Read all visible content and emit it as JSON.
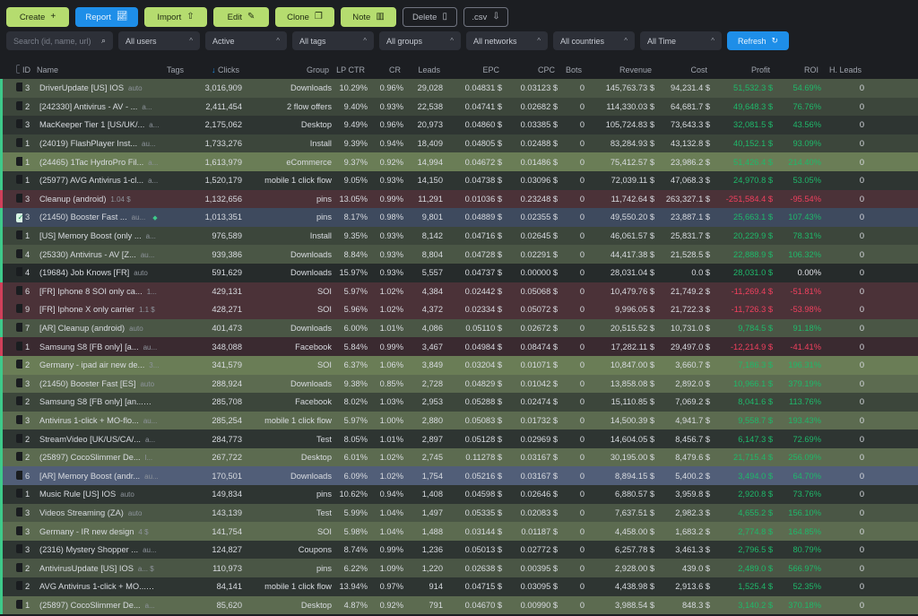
{
  "toolbar": {
    "create": "Create",
    "report": "Report",
    "import": "Import",
    "edit": "Edit",
    "clone": "Clone",
    "note": "Note",
    "delete": "Delete",
    "csv": ".csv"
  },
  "filters": {
    "search_placeholder": "Search (id, name, url)",
    "users": "All users",
    "status": "Active",
    "tags": "All tags",
    "groups": "All groups",
    "networks": "All networks",
    "countries": "All countries",
    "time": "All Time",
    "refresh": "Refresh"
  },
  "columns": [
    "ID",
    "Name",
    "Tags",
    "Clicks",
    "Group",
    "LP CTR",
    "CR",
    "Leads",
    "EPC",
    "CPC",
    "Bots",
    "Revenue",
    "Cost",
    "Profit",
    "ROI",
    "H. Leads"
  ],
  "rows": [
    {
      "id": "3",
      "name": "DriverUpdate [US] IOS",
      "tag": "auto",
      "clicks": "3,016,909",
      "group": "Downloads",
      "lpctr": "10.29%",
      "cr": "0.96%",
      "leads": "29,028",
      "epc": "0.04831 $",
      "cpc": "0.03123 $",
      "bots": "0",
      "revenue": "145,763.73 $",
      "cost": "94,231.4 $",
      "profit": "51,532.3 $",
      "roi": "54.69%",
      "hleads": "0",
      "sign": "pos",
      "bg": "bg-a",
      "checked": false
    },
    {
      "id": "2",
      "name": "[242330] Antivirus - AV - ...",
      "tag": "a...",
      "clicks": "2,411,454",
      "group": "2 flow offers",
      "lpctr": "9.40%",
      "cr": "0.93%",
      "leads": "22,538",
      "epc": "0.04741 $",
      "cpc": "0.02682 $",
      "bots": "0",
      "revenue": "114,330.03 $",
      "cost": "64,681.7 $",
      "profit": "49,648.3 $",
      "roi": "76.76%",
      "hleads": "0",
      "sign": "pos",
      "bg": "bg-b",
      "checked": false
    },
    {
      "id": "3",
      "name": "MacKeeper Tier 1 [US/UK/...",
      "tag": "a...",
      "clicks": "2,175,062",
      "group": "Desktop",
      "lpctr": "9.49%",
      "cr": "0.96%",
      "leads": "20,973",
      "epc": "0.04860 $",
      "cpc": "0.03385 $",
      "bots": "0",
      "revenue": "105,724.83 $",
      "cost": "73,643.3 $",
      "profit": "32,081.5 $",
      "roi": "43.56%",
      "hleads": "0",
      "sign": "pos",
      "bg": "bg-c",
      "checked": false
    },
    {
      "id": "1",
      "name": "(24019) FlashPlayer Inst...",
      "tag": "au...",
      "clicks": "1,733,276",
      "group": "Install",
      "lpctr": "9.39%",
      "cr": "0.94%",
      "leads": "18,409",
      "epc": "0.04805 $",
      "cpc": "0.02488 $",
      "bots": "0",
      "revenue": "83,284.93 $",
      "cost": "43,132.8 $",
      "profit": "40,152.1 $",
      "roi": "93.09%",
      "hleads": "0",
      "sign": "pos",
      "bg": "bg-b",
      "checked": false
    },
    {
      "id": "1",
      "name": "(24465) 1Tac HydroPro Fil...",
      "tag": "a...",
      "clicks": "1,613,979",
      "group": "eCommerce",
      "lpctr": "9.37%",
      "cr": "0.92%",
      "leads": "14,994",
      "epc": "0.04672 $",
      "cpc": "0.01486 $",
      "bots": "0",
      "revenue": "75,412.57 $",
      "cost": "23,986.2 $",
      "profit": "51,426.4 $",
      "roi": "214.40%",
      "hleads": "0",
      "sign": "pos",
      "bg": "bg-light",
      "checked": false
    },
    {
      "id": "1",
      "name": "(25977) AVG Antivirus 1-cl...",
      "tag": "a...",
      "clicks": "1,520,179",
      "group": "mobile 1 click flow",
      "lpctr": "9.05%",
      "cr": "0.93%",
      "leads": "14,150",
      "epc": "0.04738 $",
      "cpc": "0.03096 $",
      "bots": "0",
      "revenue": "72,039.11 $",
      "cost": "47,068.3 $",
      "profit": "24,970.8 $",
      "roi": "53.05%",
      "hleads": "0",
      "sign": "pos",
      "bg": "bg-c",
      "checked": false
    },
    {
      "id": "3",
      "name": "Cleanup (android)",
      "tag": "1.04 $",
      "clicks": "1,132,656",
      "group": "pins",
      "lpctr": "13.05%",
      "cr": "0.99%",
      "leads": "11,291",
      "epc": "0.01036 $",
      "cpc": "0.23248 $",
      "bots": "0",
      "revenue": "11,742.64 $",
      "cost": "263,327.1 $",
      "profit": "-251,584.4 $",
      "roi": "-95.54%",
      "hleads": "0",
      "sign": "neg",
      "bg": "bg-red",
      "checked": false
    },
    {
      "id": "3",
      "name": "(21450) Booster Fast ...",
      "tag": "au...",
      "clicks": "1,013,351",
      "group": "pins",
      "lpctr": "8.17%",
      "cr": "0.98%",
      "leads": "9,801",
      "epc": "0.04889 $",
      "cpc": "0.02355 $",
      "bots": "0",
      "revenue": "49,550.20 $",
      "cost": "23,887.1 $",
      "profit": "25,663.1 $",
      "roi": "107.43%",
      "hleads": "0",
      "sign": "pos",
      "bg": "bg-blue",
      "checked": true
    },
    {
      "id": "1",
      "name": "[US] Memory Boost (only ...",
      "tag": "a...",
      "clicks": "976,589",
      "group": "Install",
      "lpctr": "9.35%",
      "cr": "0.93%",
      "leads": "8,142",
      "epc": "0.04716 $",
      "cpc": "0.02645 $",
      "bots": "0",
      "revenue": "46,061.57 $",
      "cost": "25,831.7 $",
      "profit": "20,229.9 $",
      "roi": "78.31%",
      "hleads": "0",
      "sign": "pos",
      "bg": "bg-b",
      "checked": false
    },
    {
      "id": "4",
      "name": "(25330) Antivirus - AV [Z...",
      "tag": "au...",
      "clicks": "939,386",
      "group": "Downloads",
      "lpctr": "8.84%",
      "cr": "0.93%",
      "leads": "8,804",
      "epc": "0.04728 $",
      "cpc": "0.02291 $",
      "bots": "0",
      "revenue": "44,417.38 $",
      "cost": "21,528.5 $",
      "profit": "22,888.9 $",
      "roi": "106.32%",
      "hleads": "0",
      "sign": "pos",
      "bg": "bg-a",
      "checked": false
    },
    {
      "id": "4",
      "name": "(19684) Job Knows [FR]",
      "tag": "auto",
      "clicks": "591,629",
      "group": "Downloads",
      "lpctr": "15.97%",
      "cr": "0.93%",
      "leads": "5,557",
      "epc": "0.04737 $",
      "cpc": "0.00000 $",
      "bots": "0",
      "revenue": "28,031.04 $",
      "cost": "0.0 $",
      "profit": "28,031.0 $",
      "roi": "0.00%",
      "hleads": "0",
      "sign": "pos",
      "bg": "bg-dark",
      "checked": false,
      "roi_zero": true
    },
    {
      "id": "6",
      "name": "[FR] Iphone 8 SOI only ca...",
      "tag": "1...",
      "clicks": "429,131",
      "group": "SOI",
      "lpctr": "5.97%",
      "cr": "1.02%",
      "leads": "4,384",
      "epc": "0.02442 $",
      "cpc": "0.05068 $",
      "bots": "0",
      "revenue": "10,479.76 $",
      "cost": "21,749.2 $",
      "profit": "-11,269.4 $",
      "roi": "-51.81%",
      "hleads": "0",
      "sign": "neg",
      "bg": "bg-red",
      "checked": false
    },
    {
      "id": "9",
      "name": "[FR] Iphone X only carrier",
      "tag": "1.1 $",
      "clicks": "428,271",
      "group": "SOI",
      "lpctr": "5.96%",
      "cr": "1.02%",
      "leads": "4,372",
      "epc": "0.02334 $",
      "cpc": "0.05072 $",
      "bots": "0",
      "revenue": "9,996.05 $",
      "cost": "21,722.3 $",
      "profit": "-11,726.3 $",
      "roi": "-53.98%",
      "hleads": "0",
      "sign": "neg",
      "bg": "bg-red",
      "checked": false
    },
    {
      "id": "7",
      "name": "[AR] Cleanup (android)",
      "tag": "auto",
      "clicks": "401,473",
      "group": "Downloads",
      "lpctr": "6.00%",
      "cr": "1.01%",
      "leads": "4,086",
      "epc": "0.05110 $",
      "cpc": "0.02672 $",
      "bots": "0",
      "revenue": "20,515.52 $",
      "cost": "10,731.0 $",
      "profit": "9,784.5 $",
      "roi": "91.18%",
      "hleads": "0",
      "sign": "pos",
      "bg": "bg-a",
      "checked": false
    },
    {
      "id": "1",
      "name": "Samsung S8 [FB only] [a...",
      "tag": "au...",
      "clicks": "348,088",
      "group": "Facebook",
      "lpctr": "5.84%",
      "cr": "0.99%",
      "leads": "3,467",
      "epc": "0.04984 $",
      "cpc": "0.08474 $",
      "bots": "0",
      "revenue": "17,282.11 $",
      "cost": "29,497.0 $",
      "profit": "-12,214.9 $",
      "roi": "-41.41%",
      "hleads": "0",
      "sign": "neg",
      "bg": "bg-red2",
      "checked": false
    },
    {
      "id": "2",
      "name": "Germany - ipad air new de...",
      "tag": "3...",
      "clicks": "341,579",
      "group": "SOI",
      "lpctr": "6.37%",
      "cr": "1.06%",
      "leads": "3,849",
      "epc": "0.03204 $",
      "cpc": "0.01071 $",
      "bots": "0",
      "revenue": "10,847.00 $",
      "cost": "3,660.7 $",
      "profit": "7,186.3 $",
      "roi": "196.31%",
      "hleads": "0",
      "sign": "pos",
      "bg": "bg-light",
      "checked": false
    },
    {
      "id": "3",
      "name": "(21450) Booster Fast [ES]",
      "tag": "auto",
      "clicks": "288,924",
      "group": "Downloads",
      "lpctr": "9.38%",
      "cr": "0.85%",
      "leads": "2,728",
      "epc": "0.04829 $",
      "cpc": "0.01042 $",
      "bots": "0",
      "revenue": "13,858.08 $",
      "cost": "2,892.0 $",
      "profit": "10,966.1 $",
      "roi": "379.19%",
      "hleads": "0",
      "sign": "pos",
      "bg": "bg-g2",
      "checked": false
    },
    {
      "id": "2",
      "name": "Samsung S8 [FB only] [an...",
      "tag": "au...",
      "clicks": "285,708",
      "group": "Facebook",
      "lpctr": "8.02%",
      "cr": "1.03%",
      "leads": "2,953",
      "epc": "0.05288 $",
      "cpc": "0.02474 $",
      "bots": "0",
      "revenue": "15,110.85 $",
      "cost": "7,069.2 $",
      "profit": "8,041.6 $",
      "roi": "113.76%",
      "hleads": "0",
      "sign": "pos",
      "bg": "bg-b",
      "checked": false
    },
    {
      "id": "3",
      "name": "Antivirus 1-click + MO-flo...",
      "tag": "au...",
      "clicks": "285,254",
      "group": "mobile 1 click flow",
      "lpctr": "5.97%",
      "cr": "1.00%",
      "leads": "2,880",
      "epc": "0.05083 $",
      "cpc": "0.01732 $",
      "bots": "0",
      "revenue": "14,500.39 $",
      "cost": "4,941.7 $",
      "profit": "9,558.7 $",
      "roi": "193.43%",
      "hleads": "0",
      "sign": "pos",
      "bg": "bg-g2",
      "checked": false
    },
    {
      "id": "2",
      "name": "StreamVideo [UK/US/CA/...",
      "tag": "a...",
      "clicks": "284,773",
      "group": "Test",
      "lpctr": "8.05%",
      "cr": "1.01%",
      "leads": "2,897",
      "epc": "0.05128 $",
      "cpc": "0.02969 $",
      "bots": "0",
      "revenue": "14,604.05 $",
      "cost": "8,456.7 $",
      "profit": "6,147.3 $",
      "roi": "72.69%",
      "hleads": "0",
      "sign": "pos",
      "bg": "bg-c",
      "checked": false
    },
    {
      "id": "2",
      "name": "(25897) CocoSlimmer De...",
      "tag": "l...",
      "clicks": "267,722",
      "group": "Desktop",
      "lpctr": "6.01%",
      "cr": "1.02%",
      "leads": "2,745",
      "epc": "0.11278 $",
      "cpc": "0.03167 $",
      "bots": "0",
      "revenue": "30,195.00 $",
      "cost": "8,479.6 $",
      "profit": "21,715.4 $",
      "roi": "256.09%",
      "hleads": "0",
      "sign": "pos",
      "bg": "bg-g2",
      "checked": false
    },
    {
      "id": "6",
      "name": "[AR] Memory Boost (andr...",
      "tag": "au...",
      "clicks": "170,501",
      "group": "Downloads",
      "lpctr": "6.09%",
      "cr": "1.02%",
      "leads": "1,754",
      "epc": "0.05216 $",
      "cpc": "0.03167 $",
      "bots": "0",
      "revenue": "8,894.15 $",
      "cost": "5,400.2 $",
      "profit": "3,494.0 $",
      "roi": "64.70%",
      "hleads": "0",
      "sign": "pos",
      "bg": "bg-blue2",
      "checked": false
    },
    {
      "id": "1",
      "name": "Music Rule [US] IOS",
      "tag": "auto",
      "clicks": "149,834",
      "group": "pins",
      "lpctr": "10.62%",
      "cr": "0.94%",
      "leads": "1,408",
      "epc": "0.04598 $",
      "cpc": "0.02646 $",
      "bots": "0",
      "revenue": "6,880.57 $",
      "cost": "3,959.8 $",
      "profit": "2,920.8 $",
      "roi": "73.76%",
      "hleads": "0",
      "sign": "pos",
      "bg": "bg-c",
      "checked": false
    },
    {
      "id": "3",
      "name": "Videos Streaming (ZA)",
      "tag": "auto",
      "clicks": "143,139",
      "group": "Test",
      "lpctr": "5.99%",
      "cr": "1.04%",
      "leads": "1,497",
      "epc": "0.05335 $",
      "cpc": "0.02083 $",
      "bots": "0",
      "revenue": "7,637.51 $",
      "cost": "2,982.3 $",
      "profit": "4,655.2 $",
      "roi": "156.10%",
      "hleads": "0",
      "sign": "pos",
      "bg": "bg-a",
      "checked": false
    },
    {
      "id": "3",
      "name": "Germany - IR new design",
      "tag": "4 $",
      "clicks": "141,754",
      "group": "SOI",
      "lpctr": "5.98%",
      "cr": "1.04%",
      "leads": "1,488",
      "epc": "0.03144 $",
      "cpc": "0.01187 $",
      "bots": "0",
      "revenue": "4,458.00 $",
      "cost": "1,683.2 $",
      "profit": "2,774.8 $",
      "roi": "164.85%",
      "hleads": "0",
      "sign": "pos",
      "bg": "bg-g2",
      "checked": false
    },
    {
      "id": "3",
      "name": "(2316) Mystery Shopper ...",
      "tag": "au...",
      "clicks": "124,827",
      "group": "Coupons",
      "lpctr": "8.74%",
      "cr": "0.99%",
      "leads": "1,236",
      "epc": "0.05013 $",
      "cpc": "0.02772 $",
      "bots": "0",
      "revenue": "6,257.78 $",
      "cost": "3,461.3 $",
      "profit": "2,796.5 $",
      "roi": "80.79%",
      "hleads": "0",
      "sign": "pos",
      "bg": "bg-c",
      "checked": false
    },
    {
      "id": "2",
      "name": "AntivirusUpdate [US] IOS",
      "tag": "a... $",
      "clicks": "110,973",
      "group": "pins",
      "lpctr": "6.22%",
      "cr": "1.09%",
      "leads": "1,220",
      "epc": "0.02638 $",
      "cpc": "0.00395 $",
      "bots": "0",
      "revenue": "2,928.00 $",
      "cost": "439.0 $",
      "profit": "2,489.0 $",
      "roi": "566.97%",
      "hleads": "0",
      "sign": "pos",
      "bg": "bg-a",
      "checked": false
    },
    {
      "id": "2",
      "name": "AVG Antivirus 1-click + MO...",
      "tag": "a...",
      "clicks": "84,141",
      "group": "mobile 1 click flow",
      "lpctr": "13.94%",
      "cr": "0.97%",
      "leads": "914",
      "epc": "0.04715 $",
      "cpc": "0.03095 $",
      "bots": "0",
      "revenue": "4,438.98 $",
      "cost": "2,913.6 $",
      "profit": "1,525.4 $",
      "roi": "52.35%",
      "hleads": "0",
      "sign": "pos",
      "bg": "bg-c",
      "checked": false
    },
    {
      "id": "1",
      "name": "(25897) CocoSlimmer De...",
      "tag": "a...",
      "clicks": "85,620",
      "group": "Desktop",
      "lpctr": "4.87%",
      "cr": "0.92%",
      "leads": "791",
      "epc": "0.04670 $",
      "cpc": "0.00990 $",
      "bots": "0",
      "revenue": "3,988.54 $",
      "cost": "848.3 $",
      "profit": "3,140.2 $",
      "roi": "370.18%",
      "hleads": "0",
      "sign": "pos",
      "bg": "bg-g2",
      "checked": false
    }
  ]
}
